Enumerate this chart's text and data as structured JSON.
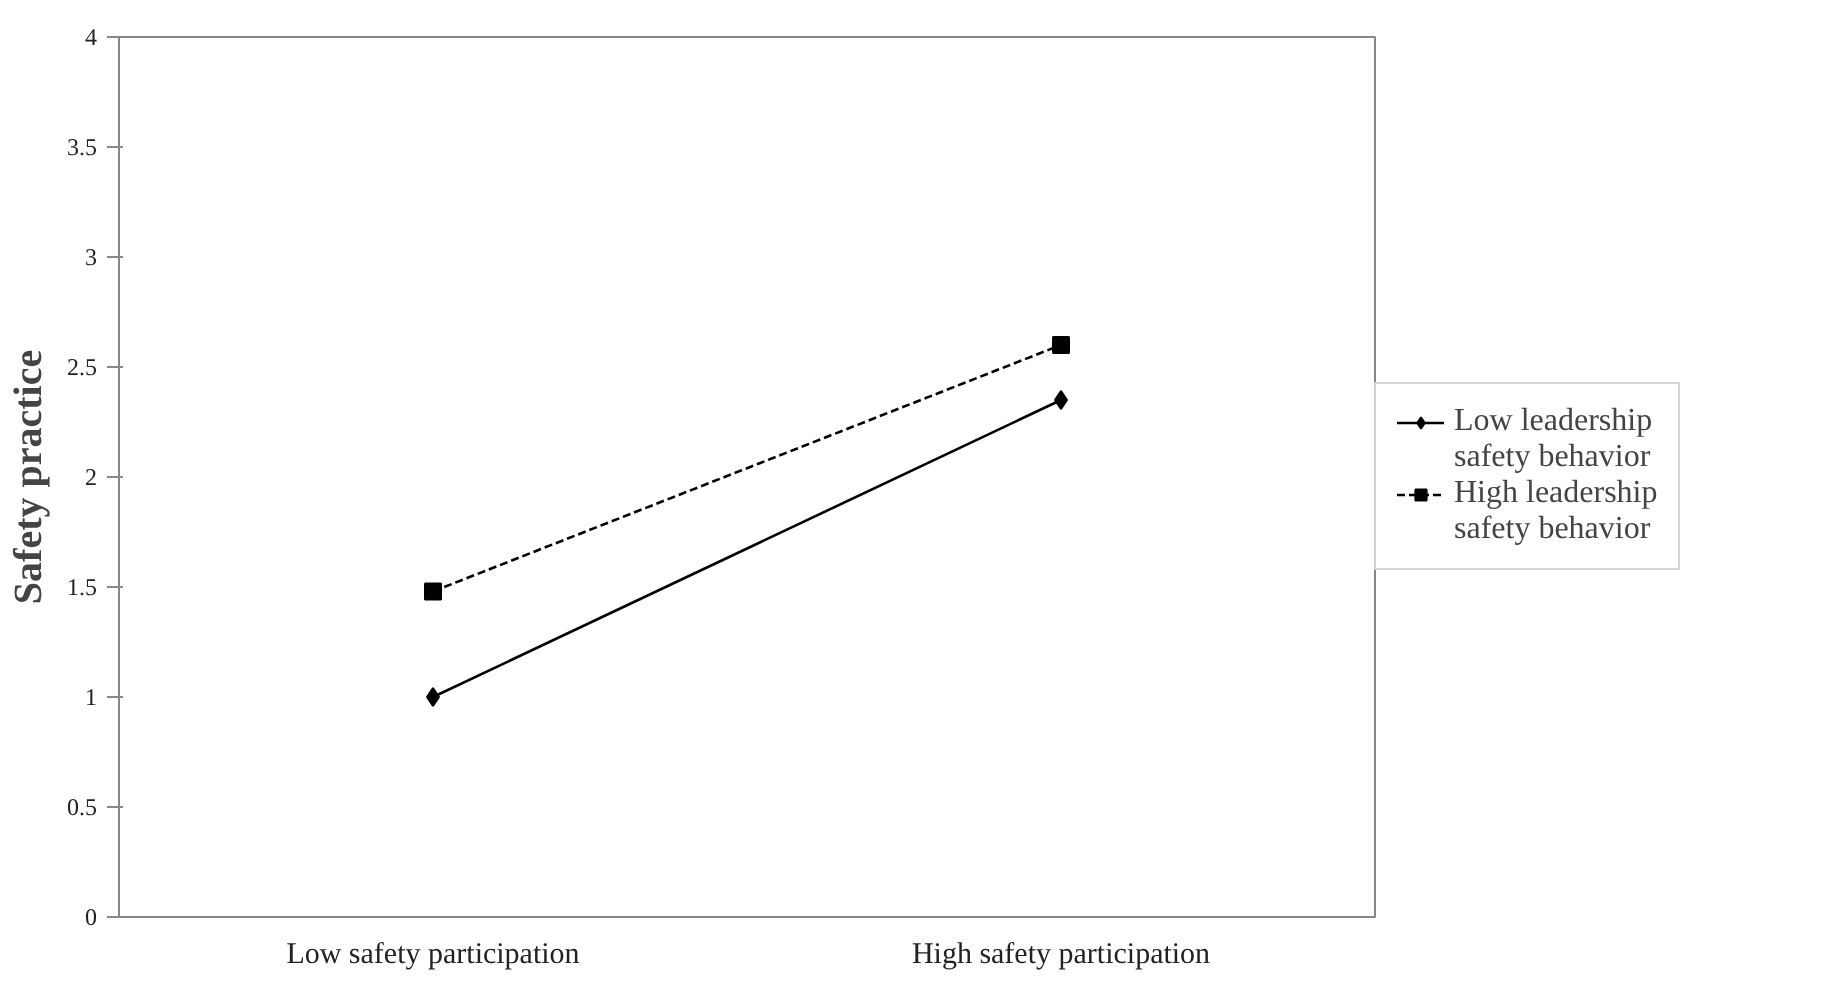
{
  "chart_data": {
    "type": "line",
    "ylabel": "Safety practice",
    "categories": [
      "Low safety participation",
      "High safety participation"
    ],
    "series": [
      {
        "name": "Low leadership safety behavior",
        "color": "#000000",
        "values": [
          1.0,
          2.35
        ],
        "marker": "diamond",
        "line_style": "solid"
      },
      {
        "name": "High leadership safety behavior",
        "color": "#000000",
        "values": [
          1.48,
          2.6
        ],
        "marker": "square",
        "line_style": "dashed"
      }
    ],
    "ylim": [
      0,
      4
    ],
    "yticks": [
      0,
      0.5,
      1,
      1.5,
      2,
      2.5,
      3,
      3.5,
      4
    ],
    "grid": false,
    "legend": "right"
  }
}
